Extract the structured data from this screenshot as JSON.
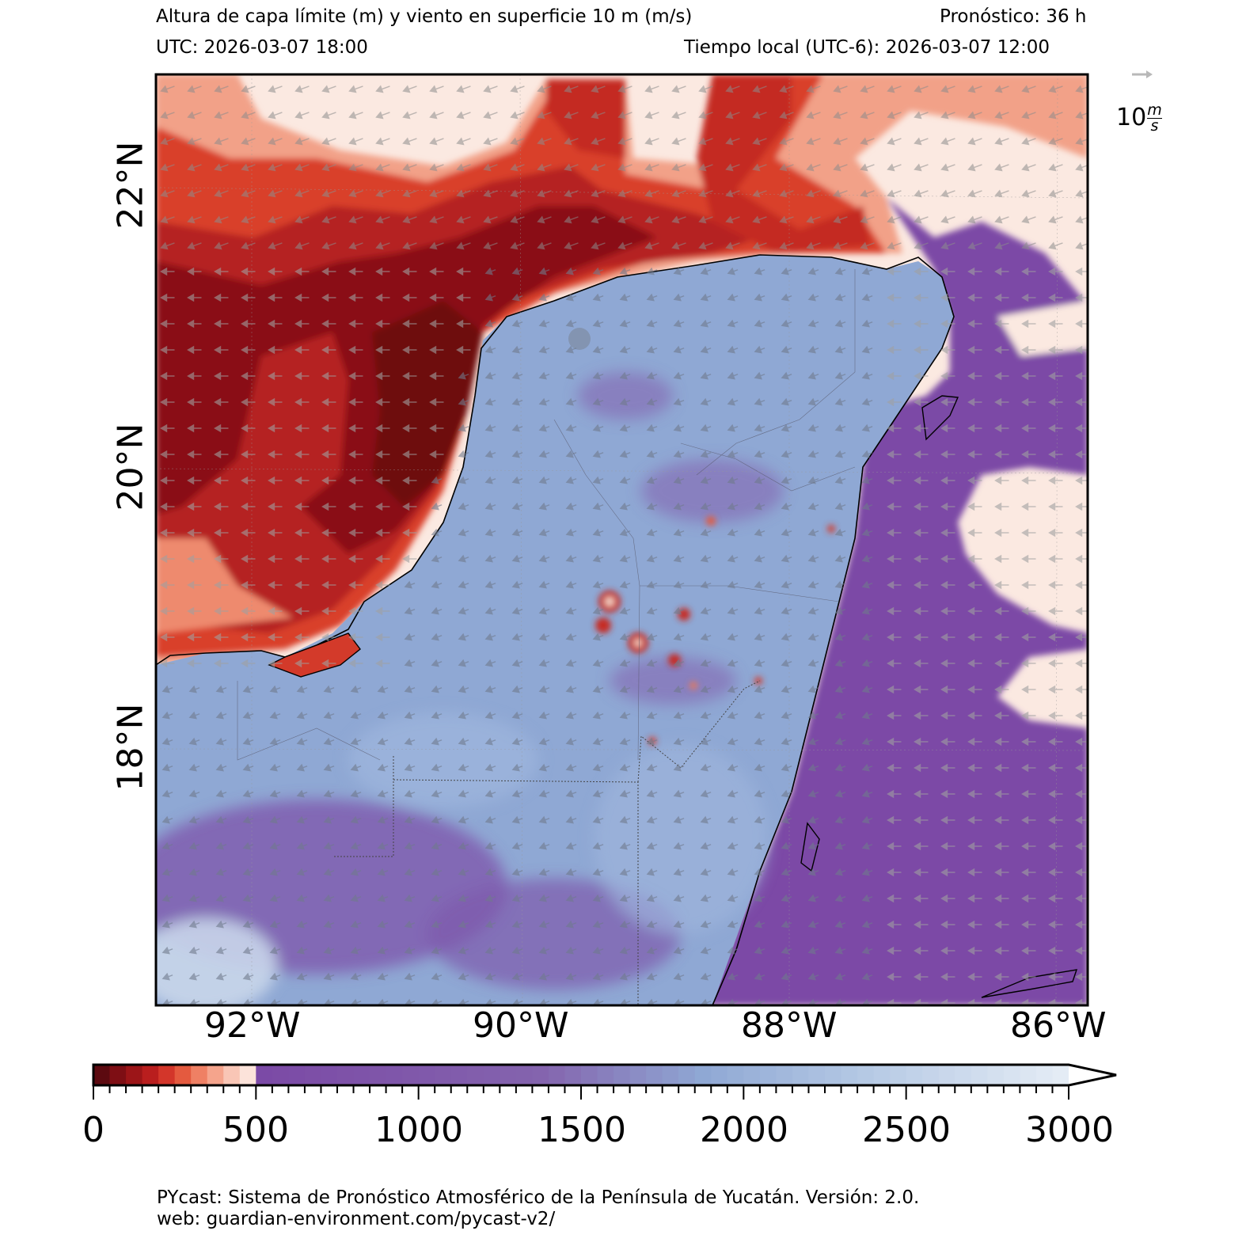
{
  "header": {
    "title": "Altura de capa límite (m) y viento en superficie 10 m (m/s)",
    "forecast": "Pronóstico: 36 h",
    "utc": "UTC:  2026-03-07 18:00",
    "local_time": "Tiempo local (UTC-6): 2026-03-07 12:00"
  },
  "axes": {
    "lat_labels": [
      "22°N",
      "20°N",
      "18°N"
    ],
    "lon_labels": [
      "92°W",
      "90°W",
      "88°W",
      "86°W"
    ]
  },
  "quiver_key": {
    "value": "10",
    "unit_num": "m",
    "unit_den": "s",
    "color": "#b8b8b8"
  },
  "colorbar": {
    "tick_labels": [
      "0",
      "500",
      "1000",
      "1500",
      "2000",
      "2500",
      "3000"
    ],
    "min": 0,
    "max": 3000,
    "extend": "max"
  },
  "colors": {
    "land_mid": "#8ea7d2",
    "ocean_low": "#a11a1a",
    "ocean_high": "#f8ddd0",
    "purple": "#7b4aa6",
    "wind_arrows": "#8c8c8c"
  },
  "footer": {
    "line1": "PYcast: Sistema de Pronóstico Atmosférico de la Península de Yucatán. Versión: 2.0.",
    "line2": "web: guardian-environment.com/pycast-v2/"
  }
}
